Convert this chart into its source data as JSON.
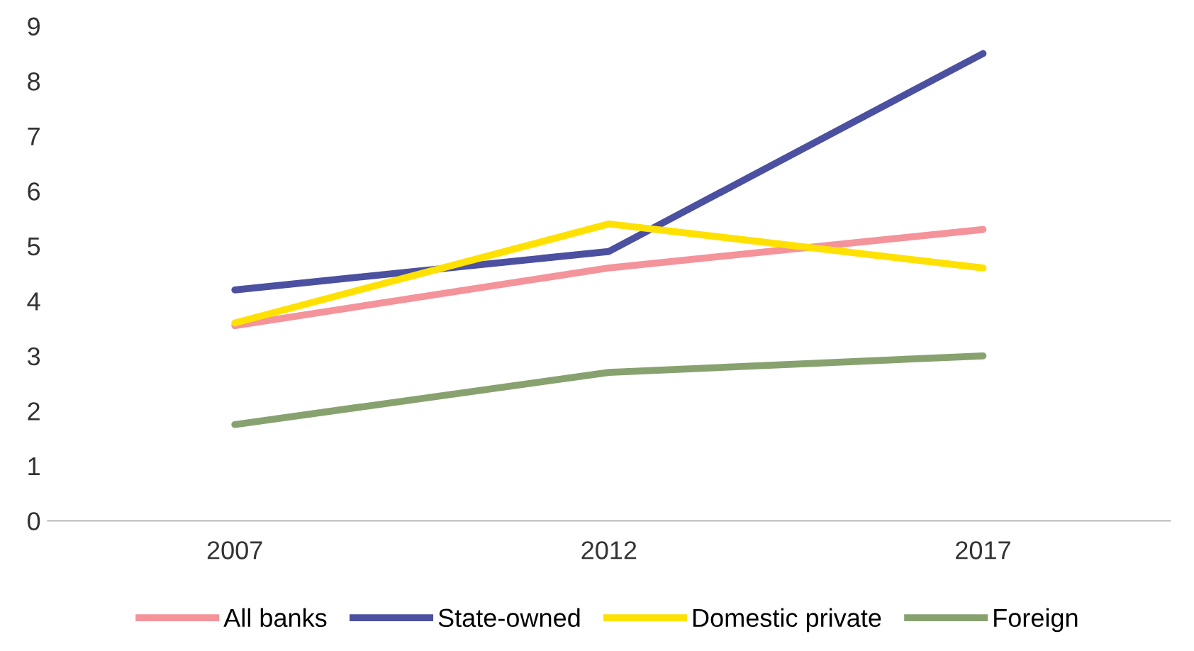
{
  "chart_data": {
    "type": "line",
    "categories": [
      "2007",
      "2012",
      "2017"
    ],
    "series": [
      {
        "name": "All banks",
        "color": "#f4939a",
        "values": [
          3.55,
          4.6,
          5.3
        ]
      },
      {
        "name": "State-owned",
        "color": "#4b50a0",
        "values": [
          4.2,
          4.9,
          8.5
        ]
      },
      {
        "name": "Domestic private",
        "color": "#ffe100",
        "values": [
          3.6,
          5.4,
          4.6
        ]
      },
      {
        "name": "Foreign",
        "color": "#87a26f",
        "values": [
          1.75,
          2.7,
          3.0
        ]
      }
    ],
    "ylim": [
      0,
      9
    ],
    "yticks": [
      0,
      1,
      2,
      3,
      4,
      5,
      6,
      7,
      8,
      9
    ],
    "grid": false,
    "legend": "bottom",
    "marker": "none",
    "line_style": "solid"
  }
}
